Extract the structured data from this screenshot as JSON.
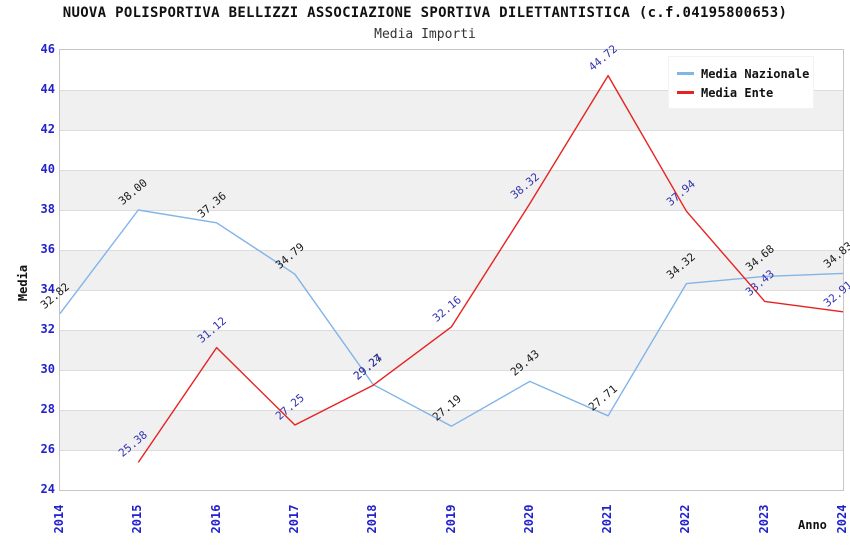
{
  "chart_data": {
    "type": "line",
    "title": "NUOVA POLISPORTIVA BELLIZZI ASSOCIAZIONE SPORTIVA DILETTANTISTICA (c.f.04195800653)",
    "subtitle": "Media Importi",
    "xlabel": "Anno",
    "ylabel": "Media",
    "xlim": [
      2014,
      2024
    ],
    "ylim": [
      24,
      46
    ],
    "ytick_step": 2,
    "x_ticks": [
      "2014",
      "2015",
      "2016",
      "2017",
      "2018",
      "2019",
      "2020",
      "2021",
      "2022",
      "2023",
      "2024"
    ],
    "grid": "horizontal alternating bands every 2 units, light gray gridlines at each tick",
    "legend_position": "top-right",
    "point_label_format": "two decimals, rotated -40deg",
    "colors": {
      "tick_label": "#2222cc",
      "axis_title": "#111111",
      "band_gray": "#f0f0f0",
      "plot_border": "#c6c6c6"
    },
    "series": [
      {
        "name": "Media Nazionale",
        "color": "#82b4e8",
        "label_color": "#1a1a1a",
        "x": [
          2014,
          2015,
          2016,
          2017,
          2018,
          2019,
          2020,
          2021,
          2022,
          2023,
          2024
        ],
        "values": [
          32.82,
          38.0,
          37.36,
          34.79,
          29.27,
          27.19,
          29.43,
          27.71,
          34.32,
          34.68,
          34.83
        ]
      },
      {
        "name": "Media Ente",
        "color": "#e62222",
        "label_color": "#3333b3",
        "x": [
          2015,
          2016,
          2017,
          2018,
          2019,
          2020,
          2021,
          2022,
          2023,
          2024
        ],
        "values": [
          25.38,
          31.12,
          27.25,
          29.24,
          32.16,
          38.32,
          44.72,
          37.94,
          33.43,
          32.91
        ]
      }
    ]
  }
}
